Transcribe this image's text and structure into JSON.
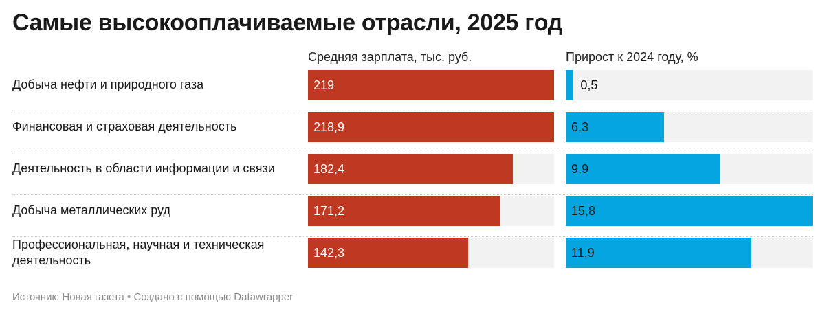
{
  "title": "Самые высокооплачиваемые отрасли, 2025 год",
  "source": "Источник: Новая газета • Создано с помощью Datawrapper",
  "colors": {
    "salary": "#bf3822",
    "growth": "#04a6e2",
    "track": "#f2f2f2"
  },
  "chart_data": {
    "type": "bar",
    "title": "Самые высокооплачиваемые отрасли, 2025 год",
    "categories": [
      "Добыча нефти и природного газа",
      "Финансовая и страховая деятельность",
      "Деятельность в области информации и связи",
      "Добыча металлических руд",
      "Профессиональная, научная и техническая деятельность"
    ],
    "series": [
      {
        "name": "Средняя зарплата, тыс. руб.",
        "values": [
          219,
          218.9,
          182.4,
          171.2,
          142.3
        ],
        "labels": [
          "219",
          "218,9",
          "182,4",
          "171,2",
          "142,3"
        ],
        "max": 219
      },
      {
        "name": "Прирост к 2024 году, %",
        "values": [
          0.5,
          6.3,
          9.9,
          15.8,
          11.9
        ],
        "labels": [
          "0,5",
          "6,3",
          "9,9",
          "15,8",
          "11,9"
        ],
        "max": 15.8
      }
    ]
  }
}
